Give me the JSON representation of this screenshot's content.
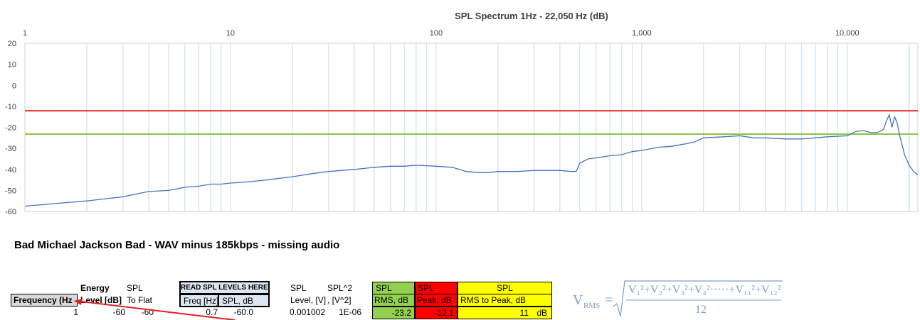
{
  "sheet": {
    "title": "Bad Michael Jackson Bad - WAV minus 185kbps - missing audio"
  },
  "chart_data": {
    "type": "line",
    "title": "SPL Spectrum 1Hz - 22,050 Hz (dB)",
    "xscale": "log",
    "xlim": [
      1,
      22050
    ],
    "ylim": [
      -60,
      20
    ],
    "x_tick_labels": [
      "1",
      "10",
      "100",
      "1,000",
      "10,000"
    ],
    "y_tick_labels": [
      "20",
      "10",
      "0",
      "-10",
      "-20",
      "-30",
      "-40",
      "-50",
      "-60"
    ],
    "grid": "vertical minor log gridlines",
    "series": [
      {
        "color": "#4472c4",
        "x": [
          1,
          1.5,
          2,
          3,
          4,
          5,
          6,
          7,
          8,
          9,
          10,
          12,
          15,
          20,
          25,
          30,
          40,
          50,
          60,
          70,
          80,
          100,
          120,
          140,
          160,
          180,
          200,
          250,
          300,
          350,
          400,
          450,
          480,
          500,
          550,
          600,
          700,
          800,
          900,
          1000,
          1200,
          1400,
          1600,
          1800,
          2000,
          2500,
          3000,
          3500,
          4000,
          5000,
          6000,
          8000,
          10000,
          11000,
          12000,
          13000,
          14000,
          15000,
          15500,
          16000,
          16500,
          17000,
          17500,
          18000,
          19000,
          20000,
          21000,
          22050
        ],
        "values": [
          -57.5,
          -56,
          -55,
          -53,
          -50.5,
          -50,
          -48.5,
          -48,
          -47,
          -47,
          -46.5,
          -46,
          -45,
          -43.5,
          -42,
          -41,
          -40,
          -39,
          -38.5,
          -38.5,
          -38,
          -38.5,
          -39,
          -41,
          -41.5,
          -41.5,
          -41,
          -41,
          -40.5,
          -40.5,
          -40.5,
          -41,
          -41,
          -37,
          -35,
          -34.5,
          -33.5,
          -33,
          -31.5,
          -31,
          -29.5,
          -29,
          -28,
          -27,
          -25,
          -24.5,
          -24,
          -25,
          -25,
          -25.5,
          -25.5,
          -24.5,
          -24,
          -22,
          -21.5,
          -22.5,
          -22.5,
          -21,
          -17,
          -14,
          -20,
          -15,
          -18,
          -24,
          -33,
          -38,
          -41,
          -42.5
        ]
      }
    ],
    "reference_lines": [
      {
        "label": "SPL Peak, dB",
        "value": -12.1,
        "color": "#e23228"
      },
      {
        "label": "SPL RMS, dB",
        "value": -23.2,
        "color": "#8cc63f"
      }
    ]
  },
  "table": {
    "headers": {
      "energy_top": "Energy",
      "spl_top": "SPL",
      "read_here": "READ SPL LEVELS HERE:",
      "spl_top2": "SPL",
      "spl_sq": "SPL^2",
      "frequency": "Frequency (Hz",
      "level_db": "Level [dB]",
      "to_flat": "To Flat",
      "freq_hz": "Freq [Hz]",
      "spl_db": "SPL, dB",
      "level_v": "Level, [V]",
      "v_sq": ", [V^2]"
    },
    "summary": {
      "rms_top": "SPL",
      "rms_label": "RMS, dB",
      "rms_value": "-23.2",
      "peak_top": "SPL",
      "peak_label": "Peak, dB",
      "peak_value": "-12.1",
      "rtp_top": "SPL",
      "rtp_label": "RMS to Peak, dB",
      "rtp_value": "11",
      "rtp_unit": "dB"
    },
    "row1": {
      "freq": "1",
      "energy": "-60",
      "spl": "-60",
      "read_freq": "0.7",
      "read_spl": "-60.0",
      "level_v": "0.001002",
      "v_sq": "1E-06"
    }
  },
  "formula": {
    "v": "V",
    "rms": "RMS",
    "eq": "=",
    "numerator": "V₁²+V₂²+V₃²+V₄²·····+V₁₁²+V₁₂²",
    "denominator": "12"
  }
}
